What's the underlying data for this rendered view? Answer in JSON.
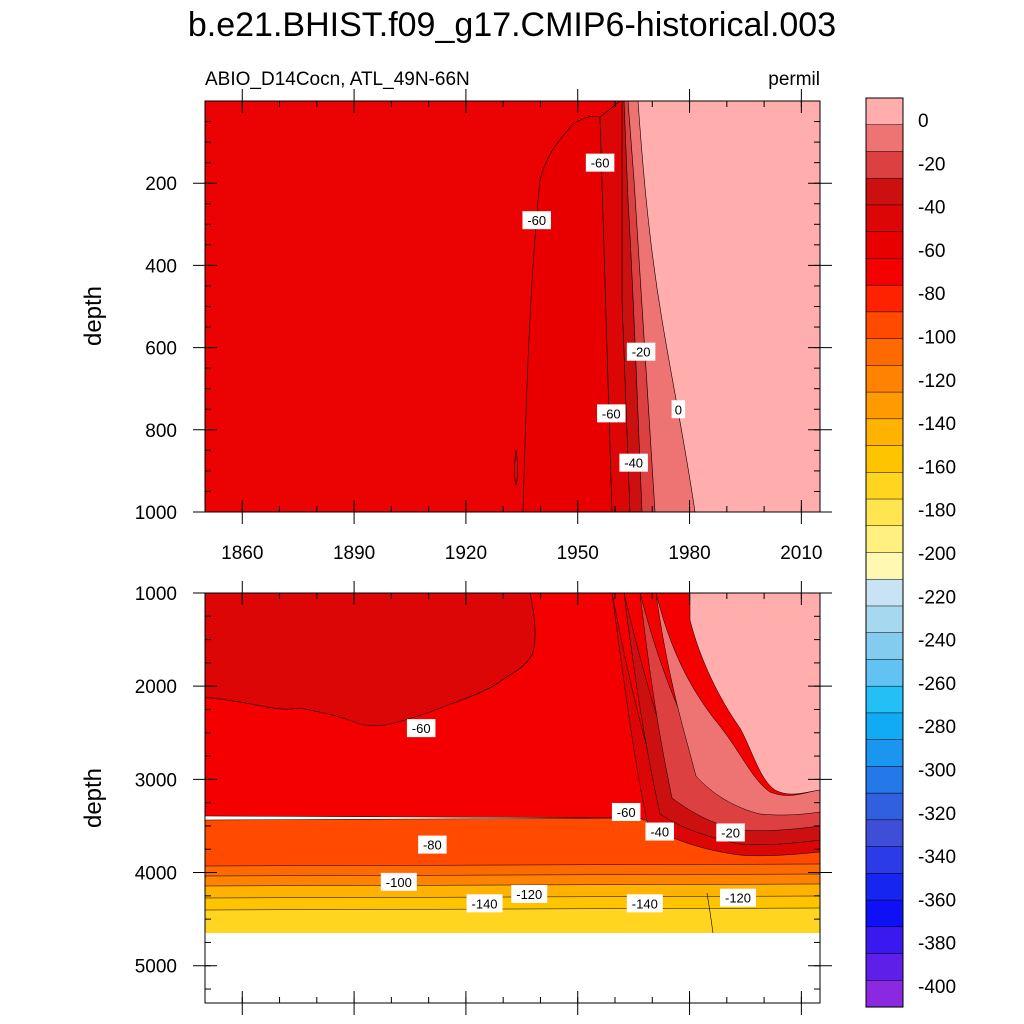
{
  "title": "b.e21.BHIST.f09_g17.CMIP6-historical.003",
  "chart_data": {
    "type": "heatmap",
    "variable_label": "ABIO_D14Cocn, ATL_49N-66N",
    "units_label": "permil",
    "x_range": [
      1850,
      2015
    ],
    "x_ticks": [
      1860,
      1890,
      1920,
      1950,
      1980,
      2010
    ],
    "panels": [
      {
        "name": "upper",
        "ylabel": "depth",
        "y_range": [
          0,
          1000
        ],
        "y_ticks": [
          200,
          400,
          600,
          800,
          1000
        ],
        "contour_labels": [
          {
            "text": "-60",
            "x": 1956,
            "y": 150
          },
          {
            "text": "-60",
            "x": 1939,
            "y": 290
          },
          {
            "text": "-20",
            "x": 1967,
            "y": 610
          },
          {
            "text": "-60",
            "x": 1959,
            "y": 760
          },
          {
            "text": "-40",
            "x": 1965,
            "y": 880
          },
          {
            "text": "0",
            "x": 1977,
            "y": 750
          }
        ]
      },
      {
        "name": "lower",
        "ylabel": "depth",
        "y_range": [
          1000,
          5400
        ],
        "y_ticks": [
          1000,
          2000,
          3000,
          4000,
          5000
        ],
        "contour_labels": [
          {
            "text": "-60",
            "x": 1908,
            "y": 2450
          },
          {
            "text": "-80",
            "x": 1911,
            "y": 3700
          },
          {
            "text": "-100",
            "x": 1902,
            "y": 4100
          },
          {
            "text": "-140",
            "x": 1925,
            "y": 4330
          },
          {
            "text": "-120",
            "x": 1937,
            "y": 4230
          },
          {
            "text": "-60",
            "x": 1963,
            "y": 3350
          },
          {
            "text": "-40",
            "x": 1972,
            "y": 3560
          },
          {
            "text": "-20",
            "x": 1991,
            "y": 3570
          },
          {
            "text": "-140",
            "x": 1968,
            "y": 4330
          },
          {
            "text": "-120",
            "x": 1993,
            "y": 4270
          }
        ]
      }
    ],
    "colorbar": {
      "labels": [
        0,
        -20,
        -40,
        -60,
        -80,
        -100,
        -120,
        -140,
        -160,
        -180,
        -200,
        -220,
        -240,
        -260,
        -280,
        -300,
        -320,
        -340,
        -360,
        -380,
        -400
      ],
      "colors": [
        "#FFADAD",
        "#EE7373",
        "#DD4040",
        "#CC1010",
        "#DD0606",
        "#E80000",
        "#F50000",
        "#FF2200",
        "#FF4A00",
        "#FF6A00",
        "#FF8200",
        "#FF9A00",
        "#FFB200",
        "#FFC400",
        "#FFD520",
        "#FFE650",
        "#FFF080",
        "#FFF8B2",
        "#C8E4F4",
        "#A6D8EF",
        "#84CCEF",
        "#62C2F2",
        "#22C0F5",
        "#10AAF5",
        "#1A96F0",
        "#2478EA",
        "#3060E0",
        "#3E4ED6",
        "#2B3BE8",
        "#1626F0",
        "#1010F6",
        "#3A18F0",
        "#5E20E8",
        "#8A28E2"
      ]
    }
  }
}
